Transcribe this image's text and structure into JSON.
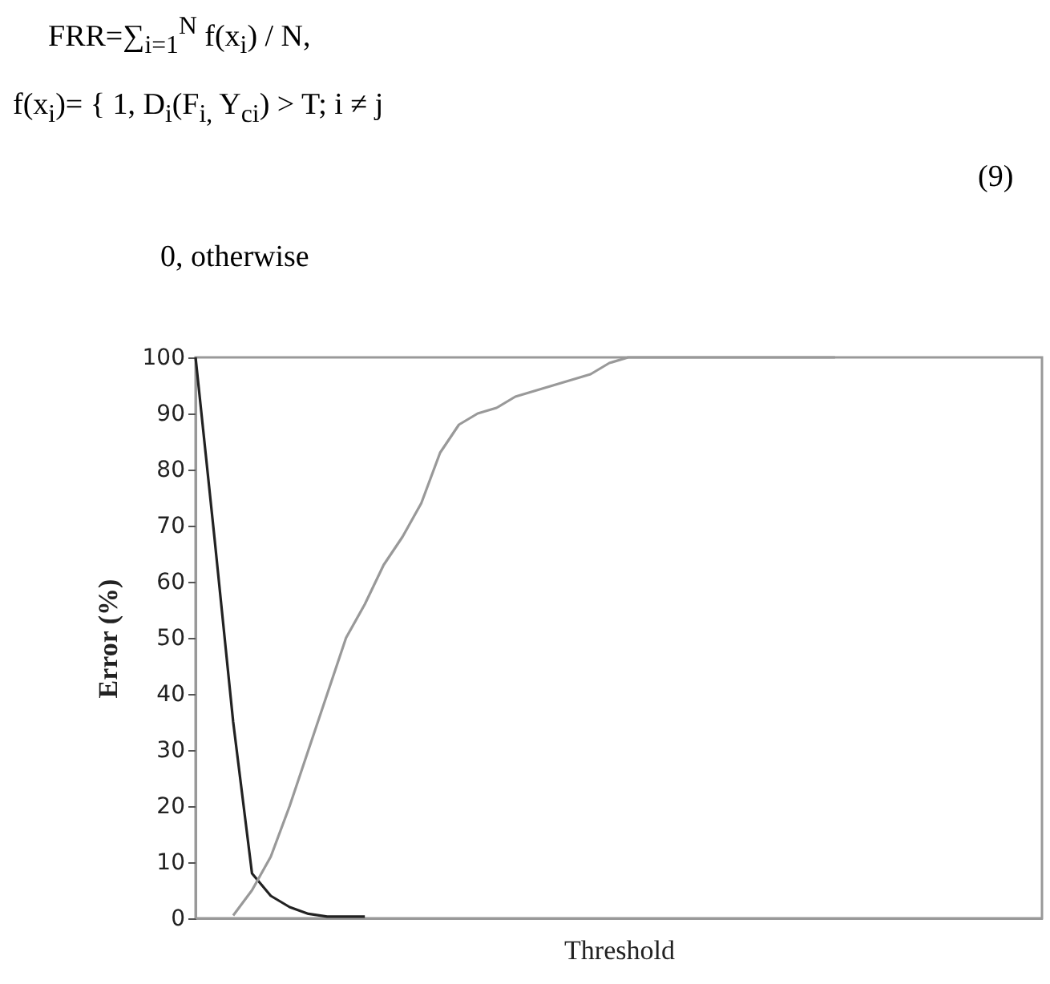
{
  "chart_data": {
    "type": "line",
    "xlabel": "Threshold",
    "ylabel": "Error (%)",
    "annotations": [
      "FRR=∑$_{i=1}$$^{N}$ f(x$_{i}$) / N,",
      "f(x$_{i}$)= { 1, D$_{i}$(F$_{i,}$ Y$_{ci}$) > T; i ≠ j",
      "0, otherwise",
      "(9)"
    ],
    "categories": [
      null,
      null,
      null,
      null,
      null,
      null,
      null,
      null,
      null,
      null,
      null,
      null,
      null,
      null,
      null,
      null,
      null,
      null,
      null,
      null,
      null,
      null,
      null,
      null,
      null,
      null,
      null,
      null,
      null,
      null,
      null,
      null,
      null,
      null,
      null,
      null,
      null,
      null,
      null,
      null,
      null,
      null,
      null,
      null,
      null,
      null
    ],
    "series": [
      {
        "color": "#222222",
        "values": [
          100,
          68,
          35,
          8,
          4,
          2,
          0.8,
          0.3,
          0.3,
          0.3,
          null,
          null,
          null,
          null,
          null,
          null,
          null,
          null,
          null,
          null,
          null,
          null,
          null,
          null,
          null,
          null,
          null,
          null,
          null,
          null,
          null,
          null,
          null,
          null,
          null,
          null,
          null,
          null,
          null,
          null,
          null,
          null,
          null,
          null,
          null,
          null
        ]
      },
      {
        "color": "#999999",
        "values": [
          null,
          null,
          0.5,
          5,
          11,
          20,
          30,
          40,
          50,
          56,
          63,
          68,
          74,
          83,
          88,
          90,
          91,
          93,
          94,
          95,
          96,
          97,
          99,
          100,
          100,
          100,
          100,
          100,
          100,
          100,
          100,
          100,
          100,
          100,
          100,
          null,
          null,
          null,
          null,
          null,
          null,
          null,
          null,
          null,
          null,
          null
        ]
      }
    ],
    "ylim": [
      0,
      100
    ],
    "yticks": [
      0,
      10,
      20,
      30,
      40,
      50,
      60,
      70,
      80,
      90,
      100
    ],
    "tick_labels": "y",
    "grid": false,
    "legend": false,
    "marker": "none",
    "line_style": "solid"
  }
}
